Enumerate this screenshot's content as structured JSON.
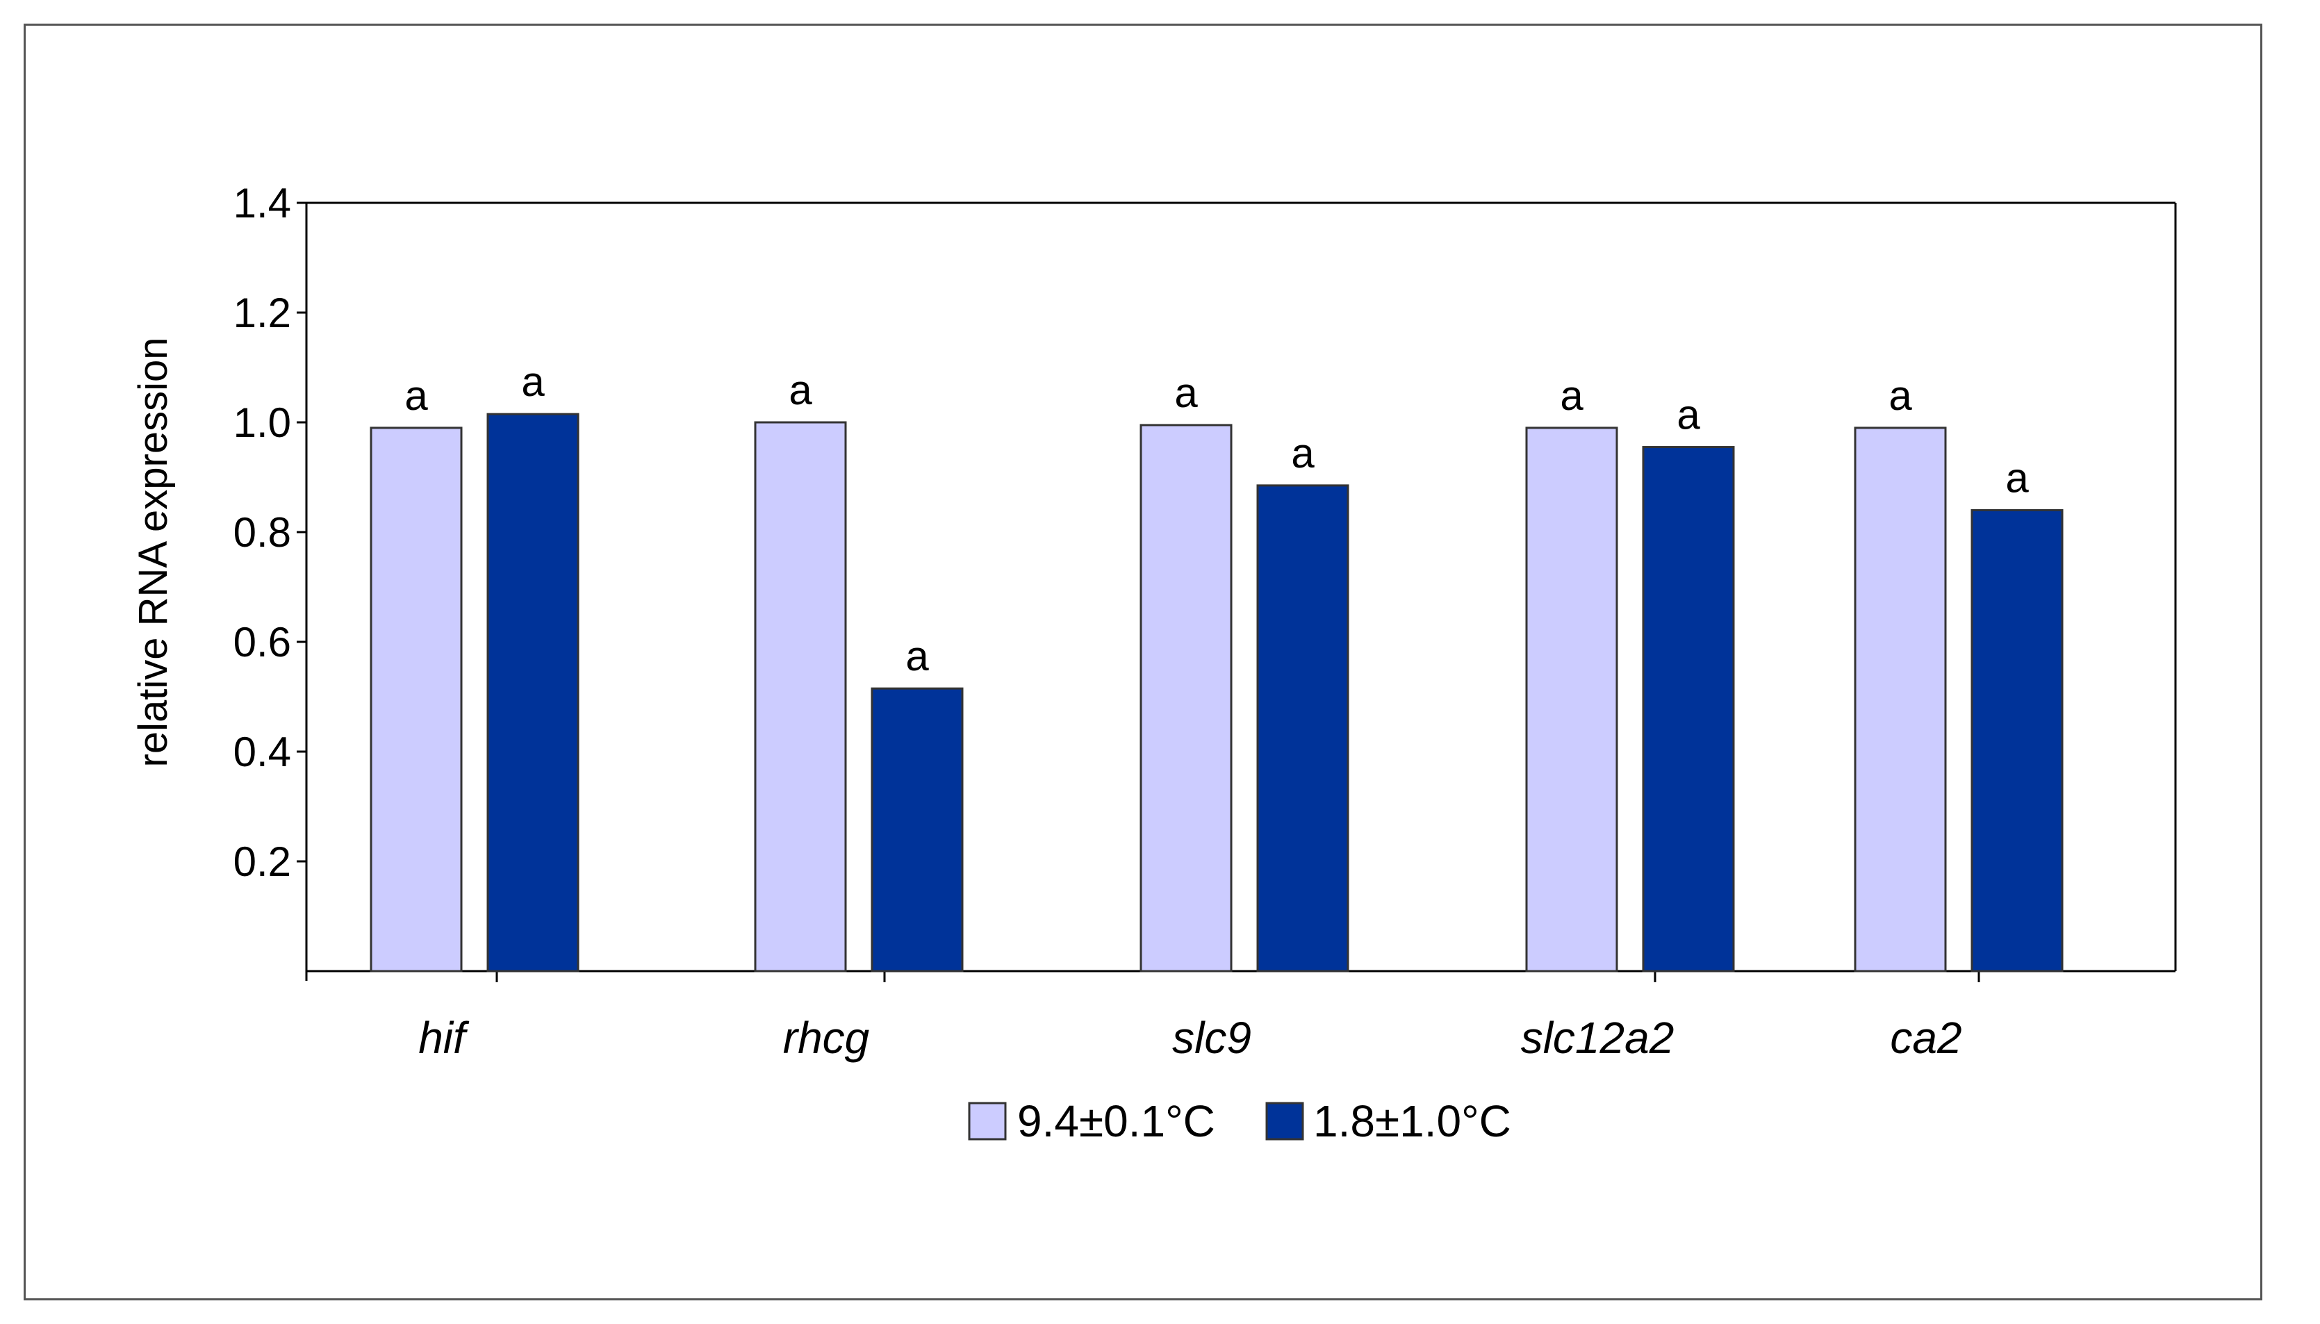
{
  "chart_data": {
    "type": "bar",
    "title": "",
    "xlabel": "",
    "ylabel": "relative RNA expression",
    "ylim": [
      0,
      1.4
    ],
    "yticks": [
      0.2,
      0.4,
      0.6,
      0.8,
      1.0,
      1.2,
      1.4
    ],
    "ytick_labels": [
      "0.2",
      "0.4",
      "0.6",
      "0.8",
      "1.0",
      "1.2",
      "1.4"
    ],
    "categories": [
      "hif",
      "rhcg",
      "slc9",
      "slc12a2",
      "ca2"
    ],
    "series": [
      {
        "name": "9.4±0.1°C",
        "color": "#ccccff",
        "values": [
          0.99,
          1.0,
          0.995,
          0.99,
          0.99
        ],
        "labels": [
          "a",
          "a",
          "a",
          "a",
          "a"
        ]
      },
      {
        "name": "1.8±1.0°C",
        "color": "#003399",
        "values": [
          1.015,
          0.515,
          0.885,
          0.955,
          0.84
        ],
        "labels": [
          "a",
          "a",
          "a",
          "a",
          "a"
        ]
      }
    ],
    "grid": false,
    "legend_position": "bottom"
  }
}
